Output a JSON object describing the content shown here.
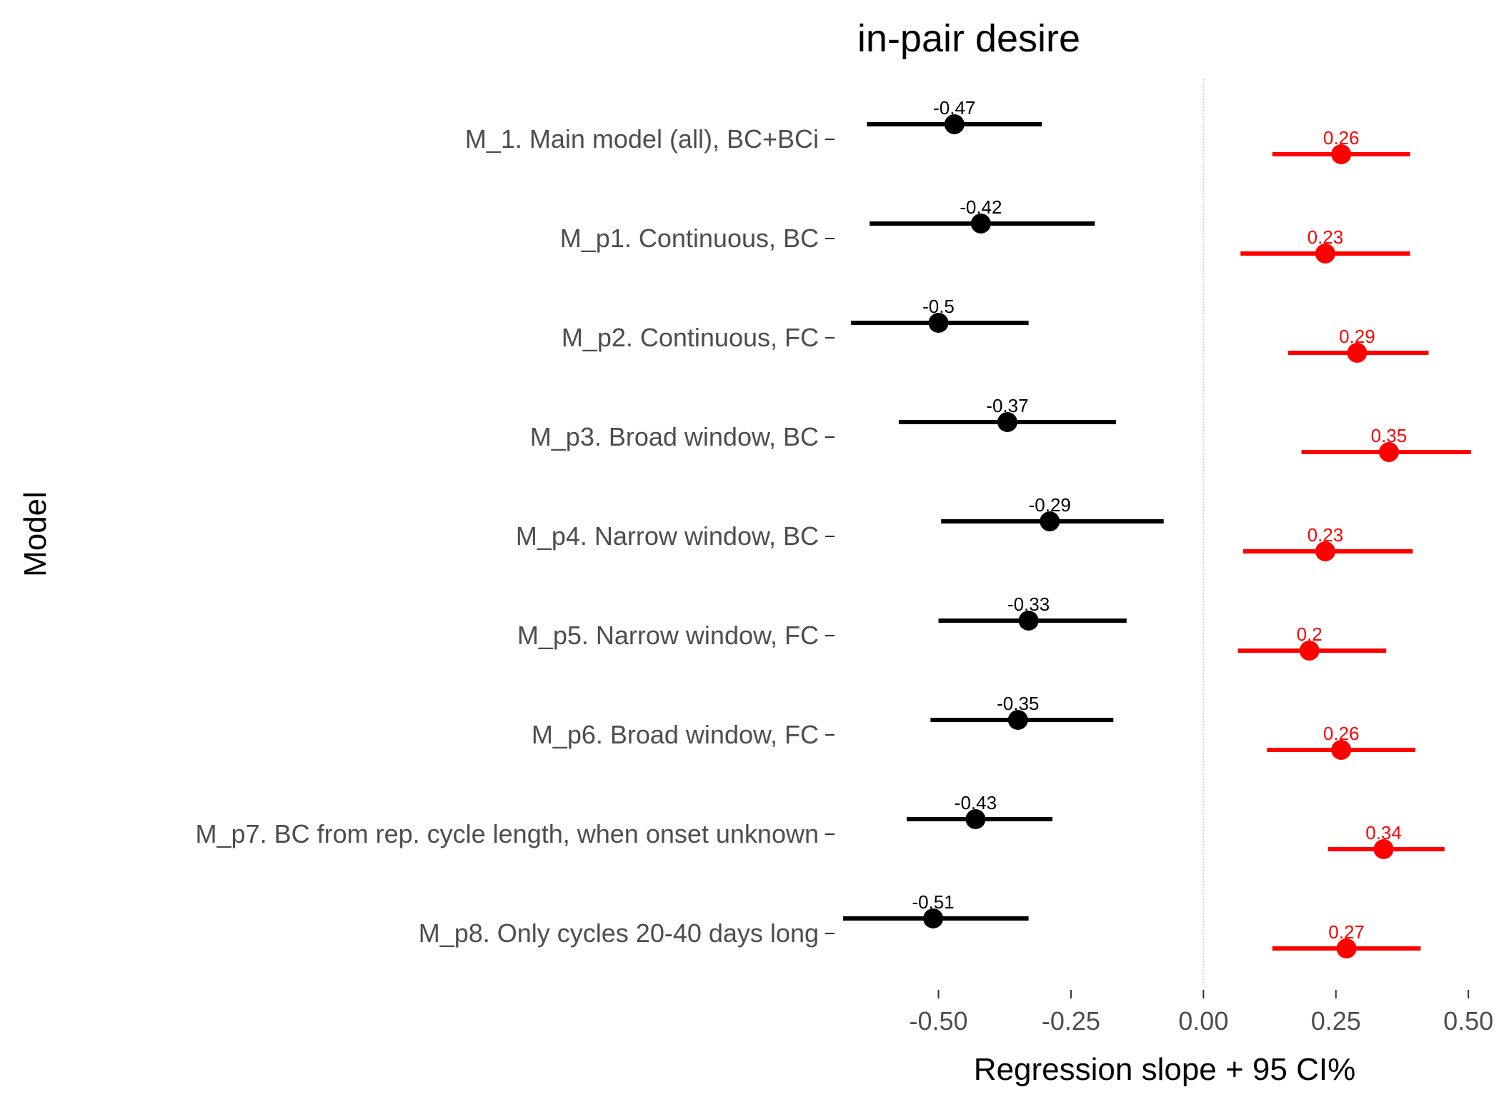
{
  "chart_data": {
    "type": "scatter",
    "title": "in-pair desire",
    "xlabel": "Regression slope + 95 CI%",
    "ylabel": "Model",
    "xlim": [
      -0.68,
      0.52
    ],
    "xticks": [
      "-0.50",
      "-0.25",
      "0.00",
      "0.25",
      "0.50"
    ],
    "xtick_values": [
      -0.5,
      -0.25,
      0,
      0.25,
      0.5
    ],
    "zero_line": true,
    "grid": false,
    "categories": [
      "M_1. Main model (all), BC+BCi",
      "M_p1. Continuous, BC",
      "M_p2. Continuous, FC",
      "M_p3. Broad window, BC",
      "M_p4. Narrow window, BC",
      "M_p5. Narrow window, FC",
      "M_p6. Broad window, FC",
      "M_p7. BC from rep. cycle length, when onset unknown",
      "M_p8. Only cycles 20-40 days long"
    ],
    "series": [
      {
        "color": "#000000",
        "values": [
          -0.47,
          -0.42,
          -0.5,
          -0.37,
          -0.29,
          -0.33,
          -0.35,
          -0.43,
          -0.51
        ],
        "lower": [
          -0.635,
          -0.63,
          -0.665,
          -0.575,
          -0.495,
          -0.5,
          -0.515,
          -0.56,
          -0.68
        ],
        "upper": [
          -0.305,
          -0.205,
          -0.33,
          -0.165,
          -0.075,
          -0.145,
          -0.17,
          -0.285,
          -0.33
        ],
        "labels": [
          "-0.47",
          "-0.42",
          "-0.5",
          "-0.37",
          "-0.29",
          "-0.33",
          "-0.35",
          "-0.43",
          "-0.51"
        ]
      },
      {
        "color": "#ff0000",
        "values": [
          0.26,
          0.23,
          0.29,
          0.35,
          0.23,
          0.2,
          0.26,
          0.34,
          0.27
        ],
        "lower": [
          0.13,
          0.07,
          0.16,
          0.185,
          0.075,
          0.065,
          0.12,
          0.235,
          0.13
        ],
        "upper": [
          0.39,
          0.39,
          0.425,
          0.505,
          0.395,
          0.345,
          0.4,
          0.455,
          0.41
        ],
        "labels": [
          "0.26",
          "0.23",
          "0.29",
          "0.35",
          "0.23",
          "0.2",
          "0.26",
          "0.34",
          "0.27"
        ]
      }
    ]
  }
}
